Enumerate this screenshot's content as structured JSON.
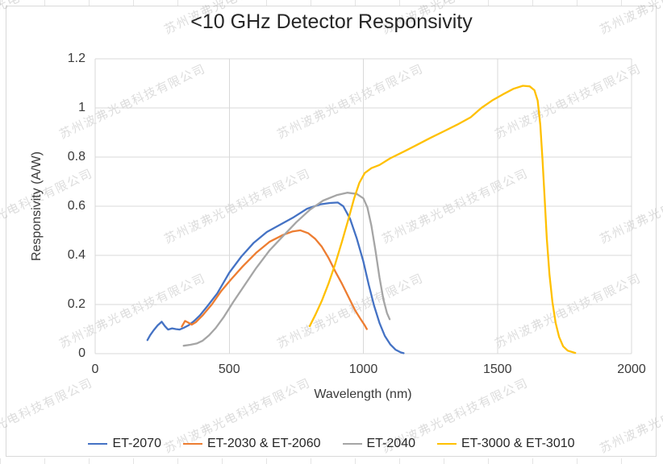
{
  "watermark": {
    "text": "苏州波弗光电科技有限公司"
  },
  "chart_data": {
    "type": "line",
    "title": "<10 GHz Detector Responsivity",
    "xlabel": "Wavelength (nm)",
    "ylabel": "Responsivity (A/W)",
    "xlim": [
      0,
      2000
    ],
    "ylim": [
      0,
      1.2
    ],
    "x_ticks": [
      "0",
      "500",
      "1000",
      "1500",
      "2000"
    ],
    "y_ticks": [
      "0",
      "0.2",
      "0.4",
      "0.6",
      "0.8",
      "1",
      "1.2"
    ],
    "grid": true,
    "legend_position": "bottom",
    "series": [
      {
        "name": "ET-2070",
        "color": "#4472C4",
        "points": [
          [
            195,
            0.055
          ],
          [
            205,
            0.075
          ],
          [
            218,
            0.095
          ],
          [
            233,
            0.115
          ],
          [
            248,
            0.13
          ],
          [
            260,
            0.112
          ],
          [
            272,
            0.098
          ],
          [
            287,
            0.103
          ],
          [
            300,
            0.1
          ],
          [
            315,
            0.098
          ],
          [
            330,
            0.105
          ],
          [
            348,
            0.115
          ],
          [
            368,
            0.132
          ],
          [
            390,
            0.155
          ],
          [
            420,
            0.195
          ],
          [
            455,
            0.245
          ],
          [
            500,
            0.33
          ],
          [
            545,
            0.395
          ],
          [
            590,
            0.45
          ],
          [
            640,
            0.495
          ],
          [
            690,
            0.525
          ],
          [
            740,
            0.555
          ],
          [
            790,
            0.59
          ],
          [
            840,
            0.608
          ],
          [
            875,
            0.613
          ],
          [
            905,
            0.615
          ],
          [
            925,
            0.6
          ],
          [
            950,
            0.55
          ],
          [
            975,
            0.47
          ],
          [
            1000,
            0.375
          ],
          [
            1020,
            0.28
          ],
          [
            1040,
            0.195
          ],
          [
            1060,
            0.125
          ],
          [
            1080,
            0.072
          ],
          [
            1100,
            0.038
          ],
          [
            1120,
            0.016
          ],
          [
            1140,
            0.005
          ],
          [
            1150,
            0.002
          ]
        ]
      },
      {
        "name": "ET-2030 & ET-2060",
        "color": "#ED7D31",
        "points": [
          [
            323,
            0.11
          ],
          [
            335,
            0.133
          ],
          [
            348,
            0.126
          ],
          [
            360,
            0.118
          ],
          [
            375,
            0.128
          ],
          [
            400,
            0.155
          ],
          [
            435,
            0.2
          ],
          [
            470,
            0.255
          ],
          [
            505,
            0.3
          ],
          [
            550,
            0.355
          ],
          [
            600,
            0.41
          ],
          [
            650,
            0.455
          ],
          [
            700,
            0.483
          ],
          [
            735,
            0.497
          ],
          [
            765,
            0.502
          ],
          [
            795,
            0.49
          ],
          [
            820,
            0.468
          ],
          [
            845,
            0.435
          ],
          [
            870,
            0.39
          ],
          [
            895,
            0.335
          ],
          [
            920,
            0.285
          ],
          [
            945,
            0.23
          ],
          [
            970,
            0.175
          ],
          [
            990,
            0.14
          ],
          [
            1005,
            0.115
          ],
          [
            1013,
            0.1
          ]
        ]
      },
      {
        "name": "ET-2040",
        "color": "#A5A5A5",
        "points": [
          [
            330,
            0.032
          ],
          [
            355,
            0.036
          ],
          [
            380,
            0.042
          ],
          [
            400,
            0.052
          ],
          [
            425,
            0.075
          ],
          [
            450,
            0.105
          ],
          [
            480,
            0.15
          ],
          [
            515,
            0.21
          ],
          [
            555,
            0.275
          ],
          [
            600,
            0.348
          ],
          [
            650,
            0.42
          ],
          [
            700,
            0.478
          ],
          [
            750,
            0.535
          ],
          [
            800,
            0.585
          ],
          [
            850,
            0.623
          ],
          [
            900,
            0.645
          ],
          [
            940,
            0.655
          ],
          [
            975,
            0.65
          ],
          [
            1000,
            0.632
          ],
          [
            1015,
            0.595
          ],
          [
            1030,
            0.52
          ],
          [
            1045,
            0.42
          ],
          [
            1060,
            0.31
          ],
          [
            1075,
            0.22
          ],
          [
            1088,
            0.165
          ],
          [
            1098,
            0.14
          ]
        ]
      },
      {
        "name": "ET-3000 & ET-3010",
        "color": "#FFC000",
        "points": [
          [
            800,
            0.112
          ],
          [
            822,
            0.16
          ],
          [
            845,
            0.215
          ],
          [
            870,
            0.285
          ],
          [
            895,
            0.365
          ],
          [
            920,
            0.455
          ],
          [
            945,
            0.55
          ],
          [
            965,
            0.63
          ],
          [
            985,
            0.695
          ],
          [
            1005,
            0.735
          ],
          [
            1030,
            0.755
          ],
          [
            1060,
            0.768
          ],
          [
            1100,
            0.795
          ],
          [
            1150,
            0.822
          ],
          [
            1200,
            0.85
          ],
          [
            1250,
            0.878
          ],
          [
            1300,
            0.905
          ],
          [
            1350,
            0.932
          ],
          [
            1400,
            0.962
          ],
          [
            1440,
            1.0
          ],
          [
            1480,
            1.03
          ],
          [
            1520,
            1.055
          ],
          [
            1560,
            1.078
          ],
          [
            1595,
            1.09
          ],
          [
            1620,
            1.088
          ],
          [
            1638,
            1.072
          ],
          [
            1650,
            1.03
          ],
          [
            1660,
            0.93
          ],
          [
            1668,
            0.79
          ],
          [
            1676,
            0.63
          ],
          [
            1684,
            0.47
          ],
          [
            1694,
            0.32
          ],
          [
            1705,
            0.21
          ],
          [
            1717,
            0.125
          ],
          [
            1730,
            0.068
          ],
          [
            1745,
            0.03
          ],
          [
            1762,
            0.012
          ],
          [
            1790,
            0.003
          ]
        ]
      }
    ],
    "style": {
      "gridline_color": "#d9d9d9",
      "text_color": "#3a3a3a",
      "title_color": "#262626"
    }
  }
}
